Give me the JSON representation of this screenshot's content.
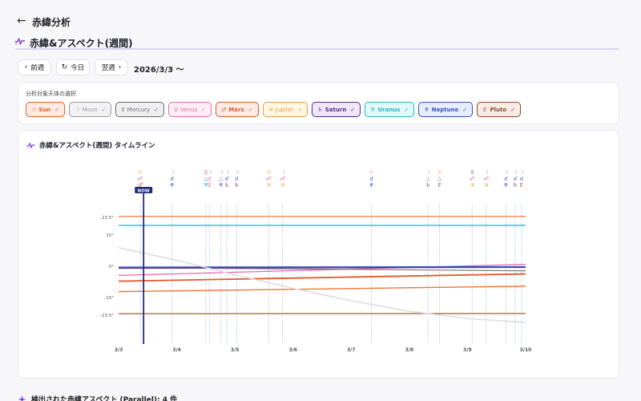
{
  "header": {
    "title": "赤緯分析",
    "back_icon": "arrow-left-icon"
  },
  "section": {
    "title": "赤緯&アスペクト(週間)"
  },
  "nav": {
    "prev_label": "前週",
    "today_label": "今日",
    "next_label": "翌週",
    "week_label": "2026/3/3 〜"
  },
  "selection": {
    "label": "分析対象天体の選択",
    "bodies": [
      {
        "glyph": "☉",
        "name": "Sun",
        "color": "#f05a28",
        "bg": "#fdebe4",
        "checked": true
      },
      {
        "glyph": "☽",
        "name": "Moon",
        "color": "#9a9aa6",
        "bg": "#f2f2f5",
        "checked": true
      },
      {
        "glyph": "☿",
        "name": "Mercury",
        "color": "#6a6a72",
        "bg": "#f0f0f2",
        "checked": true
      },
      {
        "glyph": "♀",
        "name": "Venus",
        "color": "#e66aa8",
        "bg": "#fdeef6",
        "checked": true
      },
      {
        "glyph": "♂",
        "name": "Mars",
        "color": "#e2572a",
        "bg": "#fdece5",
        "checked": true
      },
      {
        "glyph": "♃",
        "name": "Jupiter",
        "color": "#e8a13a",
        "bg": "#fef6e6",
        "checked": true
      },
      {
        "glyph": "♄",
        "name": "Saturn",
        "color": "#5b2a86",
        "bg": "#efe7f7",
        "checked": true
      },
      {
        "glyph": "♅",
        "name": "Uranus",
        "color": "#1fb8c4",
        "bg": "#e4f8f9",
        "checked": true
      },
      {
        "glyph": "♆",
        "name": "Neptune",
        "color": "#3452c7",
        "bg": "#e8edfb",
        "checked": true
      },
      {
        "glyph": "♇",
        "name": "Pluto",
        "color": "#8b4a2c",
        "bg": "#f6ebe5",
        "checked": true
      }
    ]
  },
  "timeline": {
    "title": "赤緯&アスペクト(週間) タイムライン",
    "now_label": "NOW"
  },
  "chart_data": {
    "type": "line",
    "x_tick_labels": [
      "3/3",
      "3/4",
      "3/5",
      "3/6",
      "3/7",
      "3/8",
      "3/9",
      "3/10"
    ],
    "xlim_days": [
      3,
      10
    ],
    "y_tick_labels": [
      "23.5°",
      "15°",
      "0°",
      "-15°",
      "-23.5°"
    ],
    "y_ticks": [
      23.5,
      15,
      0,
      -15,
      -23.5
    ],
    "ylim": [
      -32,
      30
    ],
    "reference_lines": [
      {
        "y": 23.5,
        "color": "#f0763a"
      },
      {
        "y": 15,
        "color": "#3ccdd6"
      },
      {
        "y": -23.5,
        "color": "#a65b35"
      }
    ],
    "now_day": 3.43,
    "series": [
      {
        "color": "#f0763a",
        "y_start": 23.5,
        "y_end": 23.5,
        "width": 1.2
      },
      {
        "color": "#3ccdd6",
        "y_start": 19.2,
        "y_end": 19.2,
        "width": 1.6
      },
      {
        "color": "#e66aa8",
        "y_start": -4.8,
        "y_end": 0.5,
        "width": 1.3
      },
      {
        "color": "#9b8abf",
        "y_start": -1.2,
        "y_end": -1.0,
        "width": 1.2
      },
      {
        "color": "#7a7a88",
        "y_start": -1.0,
        "y_end": -2.6,
        "width": 1.2
      },
      {
        "color": "#5b2a86",
        "y_start": -1.4,
        "y_end": -0.9,
        "width": 1.2
      },
      {
        "color": "#3452c7",
        "y_start": -0.8,
        "y_end": -0.6,
        "width": 1.2
      },
      {
        "color": "#e2572a",
        "y_start": -7.6,
        "y_end": -4.1,
        "width": 1.8
      },
      {
        "color": "#f0763a",
        "y_start": -12.6,
        "y_end": -10.0,
        "width": 1.4
      },
      {
        "color": "#a65b35",
        "y_start": -23.2,
        "y_end": -23.1,
        "width": 1.2
      },
      {
        "color": "#dcdce3",
        "points": [
          [
            3,
            8.5
          ],
          [
            4,
            2.5
          ],
          [
            5,
            -4.5
          ],
          [
            6,
            -11.0
          ],
          [
            7,
            -17.0
          ],
          [
            8,
            -22.0
          ],
          [
            9,
            -25.5
          ],
          [
            10,
            -27.5
          ]
        ],
        "width": 1.6
      }
    ],
    "aspect_events": [
      {
        "day": 3.37,
        "glyphs": [
          "☉",
          "☍",
          "♂"
        ],
        "colors": [
          "#f0763a",
          "#e66aa8",
          "#e2572a"
        ]
      },
      {
        "day": 3.92,
        "glyphs": [
          "☽",
          "☌",
          "♆"
        ],
        "colors": [
          "#9a9aa6",
          "#3452c7",
          "#3452c7"
        ]
      },
      {
        "day": 4.5,
        "glyphs": [
          "♀",
          "△",
          "♅"
        ],
        "colors": [
          "#e66aa8",
          "#8a8a96",
          "#1fb8c4"
        ]
      },
      {
        "day": 4.56,
        "glyphs": [
          "☽",
          "☌",
          "♀"
        ],
        "colors": [
          "#9a9aa6",
          "#e66aa8",
          "#e66aa8"
        ]
      },
      {
        "day": 4.76,
        "glyphs": [
          "☽",
          "△",
          "♆"
        ],
        "colors": [
          "#9a9aa6",
          "#8a8a96",
          "#3452c7"
        ]
      },
      {
        "day": 4.86,
        "glyphs": [
          "☽",
          "☌",
          "♄"
        ],
        "colors": [
          "#9a9aa6",
          "#3452c7",
          "#5b2a86"
        ]
      },
      {
        "day": 5.03,
        "glyphs": [
          "☽",
          "☌",
          "♄"
        ],
        "colors": [
          "#9a9aa6",
          "#3452c7",
          "#5b2a86"
        ]
      },
      {
        "day": 5.58,
        "glyphs": [
          "☉",
          "☍",
          "♃"
        ],
        "colors": [
          "#f0763a",
          "#e66aa8",
          "#e8a13a"
        ]
      },
      {
        "day": 5.82,
        "glyphs": [
          "☽",
          "☍",
          "♃"
        ],
        "colors": [
          "#9a9aa6",
          "#e66aa8",
          "#e8a13a"
        ]
      },
      {
        "day": 7.35,
        "glyphs": [
          "☉",
          "☌",
          "♆"
        ],
        "colors": [
          "#f0763a",
          "#3452c7",
          "#3452c7"
        ]
      },
      {
        "day": 8.32,
        "glyphs": [
          "☽",
          "△",
          "♄"
        ],
        "colors": [
          "#9a9aa6",
          "#8a8a96",
          "#5b2a86"
        ]
      },
      {
        "day": 8.52,
        "glyphs": [
          "☉",
          "△",
          "♇"
        ],
        "colors": [
          "#f0763a",
          "#8a8a96",
          "#8b4a2c"
        ]
      },
      {
        "day": 9.08,
        "glyphs": [
          "☿",
          "☍",
          "♃"
        ],
        "colors": [
          "#6a6a72",
          "#e66aa8",
          "#e8a13a"
        ]
      },
      {
        "day": 9.32,
        "glyphs": [
          "☽",
          "☍",
          "♃"
        ],
        "colors": [
          "#9a9aa6",
          "#e66aa8",
          "#e8a13a"
        ]
      },
      {
        "day": 9.66,
        "glyphs": [
          "☽",
          "☌",
          "♆"
        ],
        "colors": [
          "#9a9aa6",
          "#3452c7",
          "#3452c7"
        ]
      },
      {
        "day": 9.82,
        "glyphs": [
          "☽",
          "☌",
          "♄"
        ],
        "colors": [
          "#9a9aa6",
          "#3452c7",
          "#5b2a86"
        ]
      },
      {
        "day": 9.93,
        "glyphs": [
          "☽",
          "☌",
          "♇"
        ],
        "colors": [
          "#9a9aa6",
          "#3452c7",
          "#8b4a2c"
        ]
      }
    ]
  },
  "bottom": {
    "title": "検出された赤緯アスペクト (Parallel): 4 件"
  }
}
